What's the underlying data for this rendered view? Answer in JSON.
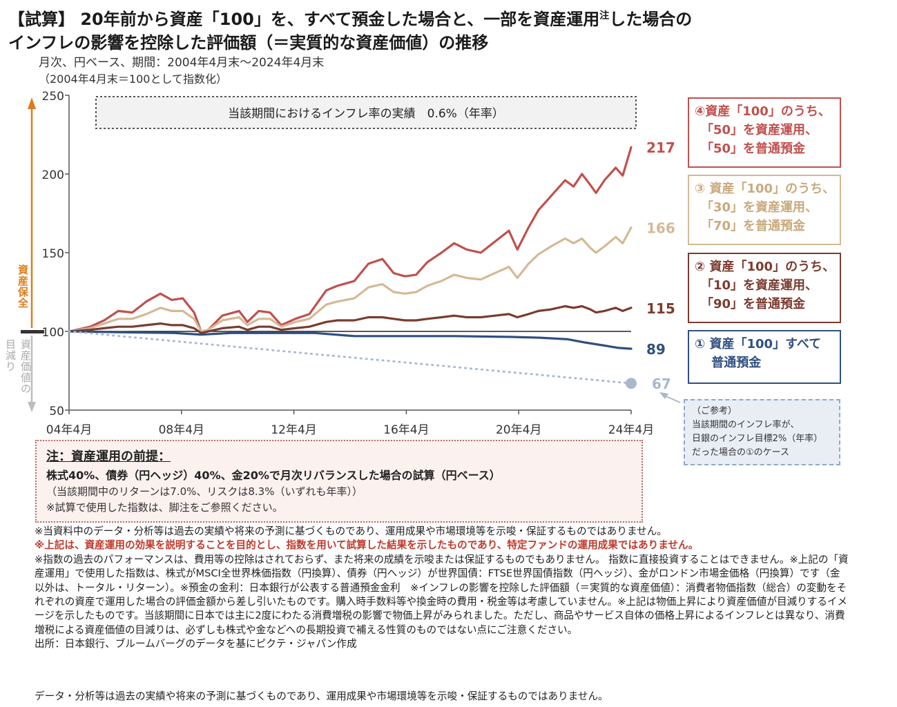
{
  "header": {
    "title_line1": "【試算】 20年前から資産「100」を、すべて預金した場合と、一部を資産運用",
    "title_sup": "注",
    "title_line1_end": "した場合の",
    "title_line2": "インフレの影響を控除した評価額（＝実質的な資産価値）の推移",
    "subtitle1": "月次、円ベース、期間：2004年4月末～2024年4月末",
    "subtitle2": "（2004年4月末＝100として指数化）"
  },
  "chart_data": {
    "type": "line",
    "x_ticks": [
      "04年4月",
      "08年4月",
      "12年4月",
      "16年4月",
      "20年4月",
      "24年4月"
    ],
    "y_ticks": [
      250,
      200,
      150,
      100,
      50
    ],
    "ylim": [
      50,
      250
    ],
    "xlim": [
      2004.25,
      2024.25
    ],
    "baseline": 100,
    "inflation_note": "当該期間におけるインフレ率の実績　0.6%（年率）",
    "axis_up_label": "資産保全",
    "axis_down_label1": "資産価値の",
    "axis_down_label2": "目減り",
    "series": [
      {
        "id": "s4",
        "color": "#c0504d",
        "end_label": "217",
        "points": [
          [
            2004.25,
            100
          ],
          [
            2005.0,
            103
          ],
          [
            2005.5,
            107
          ],
          [
            2006.0,
            113
          ],
          [
            2006.5,
            112
          ],
          [
            2007.0,
            119
          ],
          [
            2007.5,
            124
          ],
          [
            2007.9,
            120
          ],
          [
            2008.3,
            121
          ],
          [
            2008.7,
            112
          ],
          [
            2008.95,
            100
          ],
          [
            2009.2,
            101
          ],
          [
            2009.7,
            110
          ],
          [
            2010.3,
            113
          ],
          [
            2010.6,
            106
          ],
          [
            2011.0,
            113
          ],
          [
            2011.4,
            112
          ],
          [
            2011.8,
            104
          ],
          [
            2012.3,
            108
          ],
          [
            2012.8,
            111
          ],
          [
            2013.4,
            126
          ],
          [
            2013.8,
            129
          ],
          [
            2014.4,
            132
          ],
          [
            2014.9,
            143
          ],
          [
            2015.4,
            146
          ],
          [
            2015.8,
            137
          ],
          [
            2016.2,
            135
          ],
          [
            2016.6,
            136
          ],
          [
            2017.0,
            144
          ],
          [
            2017.5,
            150
          ],
          [
            2017.95,
            156
          ],
          [
            2018.4,
            152
          ],
          [
            2018.9,
            150
          ],
          [
            2019.4,
            157
          ],
          [
            2019.9,
            164
          ],
          [
            2020.2,
            152
          ],
          [
            2020.6,
            166
          ],
          [
            2020.95,
            177
          ],
          [
            2021.4,
            186
          ],
          [
            2021.9,
            196
          ],
          [
            2022.2,
            192
          ],
          [
            2022.5,
            200
          ],
          [
            2022.8,
            193
          ],
          [
            2023.0,
            188
          ],
          [
            2023.3,
            196
          ],
          [
            2023.7,
            204
          ],
          [
            2023.95,
            199
          ],
          [
            2024.25,
            217
          ]
        ]
      },
      {
        "id": "s3",
        "color": "#d4b994",
        "end_label": "166",
        "points": [
          [
            2004.25,
            100
          ],
          [
            2005.0,
            102
          ],
          [
            2005.5,
            105
          ],
          [
            2006.0,
            108
          ],
          [
            2006.5,
            108
          ],
          [
            2007.0,
            111
          ],
          [
            2007.5,
            115
          ],
          [
            2007.9,
            113
          ],
          [
            2008.3,
            113
          ],
          [
            2008.7,
            108
          ],
          [
            2008.95,
            100
          ],
          [
            2009.2,
            101
          ],
          [
            2009.7,
            107
          ],
          [
            2010.3,
            109
          ],
          [
            2010.6,
            104
          ],
          [
            2011.0,
            108
          ],
          [
            2011.4,
            108
          ],
          [
            2011.8,
            103
          ],
          [
            2012.3,
            106
          ],
          [
            2012.8,
            108
          ],
          [
            2013.4,
            117
          ],
          [
            2013.8,
            119
          ],
          [
            2014.4,
            121
          ],
          [
            2014.9,
            128
          ],
          [
            2015.4,
            130
          ],
          [
            2015.8,
            125
          ],
          [
            2016.2,
            124
          ],
          [
            2016.6,
            125
          ],
          [
            2017.0,
            129
          ],
          [
            2017.5,
            132
          ],
          [
            2017.95,
            136
          ],
          [
            2018.4,
            134
          ],
          [
            2018.9,
            133
          ],
          [
            2019.4,
            137
          ],
          [
            2019.9,
            141
          ],
          [
            2020.2,
            134
          ],
          [
            2020.6,
            143
          ],
          [
            2020.95,
            149
          ],
          [
            2021.4,
            154
          ],
          [
            2021.9,
            159
          ],
          [
            2022.2,
            156
          ],
          [
            2022.5,
            159
          ],
          [
            2022.8,
            153
          ],
          [
            2023.0,
            150
          ],
          [
            2023.3,
            154
          ],
          [
            2023.7,
            160
          ],
          [
            2023.95,
            156
          ],
          [
            2024.25,
            166
          ]
        ]
      },
      {
        "id": "s2",
        "color": "#7b3b2f",
        "end_label": "115",
        "points": [
          [
            2004.25,
            100
          ],
          [
            2005.0,
            101
          ],
          [
            2005.5,
            102
          ],
          [
            2006.0,
            103
          ],
          [
            2006.5,
            103
          ],
          [
            2007.0,
            104
          ],
          [
            2007.5,
            105
          ],
          [
            2007.9,
            104
          ],
          [
            2008.3,
            104
          ],
          [
            2008.7,
            102
          ],
          [
            2008.95,
            99
          ],
          [
            2009.2,
            100
          ],
          [
            2009.7,
            102
          ],
          [
            2010.3,
            103
          ],
          [
            2010.6,
            101
          ],
          [
            2011.0,
            103
          ],
          [
            2011.4,
            103
          ],
          [
            2011.8,
            101
          ],
          [
            2012.3,
            102
          ],
          [
            2012.8,
            103
          ],
          [
            2013.4,
            106
          ],
          [
            2013.8,
            107
          ],
          [
            2014.4,
            107
          ],
          [
            2014.9,
            109
          ],
          [
            2015.4,
            109
          ],
          [
            2015.8,
            108
          ],
          [
            2016.2,
            107
          ],
          [
            2016.6,
            107
          ],
          [
            2017.0,
            108
          ],
          [
            2017.5,
            109
          ],
          [
            2017.95,
            110
          ],
          [
            2018.4,
            109
          ],
          [
            2018.9,
            109
          ],
          [
            2019.4,
            110
          ],
          [
            2019.9,
            111
          ],
          [
            2020.2,
            109
          ],
          [
            2020.6,
            111
          ],
          [
            2020.95,
            113
          ],
          [
            2021.4,
            114
          ],
          [
            2021.9,
            116
          ],
          [
            2022.2,
            115
          ],
          [
            2022.5,
            116
          ],
          [
            2022.8,
            114
          ],
          [
            2023.0,
            112
          ],
          [
            2023.3,
            113
          ],
          [
            2023.7,
            115
          ],
          [
            2023.95,
            113
          ],
          [
            2024.25,
            115
          ]
        ]
      },
      {
        "id": "s1",
        "color": "#2f4f80",
        "end_label": "89",
        "points": [
          [
            2004.25,
            100
          ],
          [
            2006.0,
            99.5
          ],
          [
            2008.0,
            99
          ],
          [
            2008.95,
            98
          ],
          [
            2010.0,
            99
          ],
          [
            2012.0,
            99
          ],
          [
            2013.0,
            99
          ],
          [
            2014.4,
            97
          ],
          [
            2016.0,
            97
          ],
          [
            2018.0,
            97
          ],
          [
            2020.0,
            96.5
          ],
          [
            2021.0,
            96
          ],
          [
            2022.0,
            95
          ],
          [
            2022.6,
            93
          ],
          [
            2023.3,
            91
          ],
          [
            2023.8,
            89.5
          ],
          [
            2024.25,
            89
          ]
        ]
      },
      {
        "id": "ref",
        "color": "#a9b8cc",
        "dotted": true,
        "end_label": "67",
        "points": [
          [
            2004.25,
            100
          ],
          [
            2024.25,
            67
          ]
        ]
      }
    ]
  },
  "legend": {
    "s4": [
      "④資産「100」のうち、",
      "　「50」を資産運用、",
      "　「50」を普通預金"
    ],
    "s3": [
      "③ 資産「100」のうち、",
      "　「30」を資産運用、",
      "　「70」を普通預金"
    ],
    "s2": [
      "② 資産「100」のうち、",
      "　「10」を資産運用、",
      "　「90」を普通預金"
    ],
    "s1": [
      "① 資産「100」すべて",
      "　 普通預金"
    ]
  },
  "reference": {
    "lines": [
      "（ご参考）",
      "当該期間のインフレ率が、",
      "日銀のインフレ目標2%（年率）",
      "だった場合の①のケース"
    ]
  },
  "note": {
    "heading": "注：資産運用の前提：",
    "line1": "株式40%、債券（円ヘッジ）40%、金20%で月次リバランスした場合の試算（円ベース）",
    "line2": "（当該期間中のリターンは7.0%、リスクは8.3%（いずれも年率））",
    "line3": "※試算で使用した指数は、脚注をご参照ください。"
  },
  "disclaimer": {
    "p1": "※当資料中のデータ・分析等は過去の実績や将来の予測に基づくものであり、運用成果や市場環境等を示唆・保証するものではありません。",
    "p2_red": "※上記は、資産運用の効果を説明することを目的とし、指数を用いて試算した結果を示したものであり、特定ファンドの運用成果ではありません。",
    "p3": "※指数の過去のパフォーマンスは、費用等の控除はされておらず、また将来の成績を示唆または保証するものでもありません。 指数に直接投資することはできません。※上記の「資産運用」で使用した指数は、株式がMSCI全世界株価指数（円換算）、債券（円ヘッジ）が世界国債：FTSE世界国債指数（円ヘッジ）、金がロンドン市場金価格（円換算）です（金以外は、トータル・リターン）。※預金の金利：日本銀行が公表する普通預金金利　※インフレの影響を控除した評価額（＝実質的な資産価値）：消費者物価指数（総合）の変動をそれぞれの資産で運用した場合の評価金額から差し引いたものです。購入時手数料等や換金時の費用・税金等は考慮していません。※上記は物価上昇により資産価値が目減りするイメージを示したものです。当該期間に日本では主に2度にわたる消費増税の影響で物価上昇がみられました。ただし、商品やサービス自体の価格上昇によるインフレとは異なり、消費増税による資産価値の目減りは、必ずしも株式や金などへの長期投資で補える性質のものではない点にご注意ください。",
    "source": "出所：日本銀行、ブルームバーグのデータを基にピクテ・ジャパン作成"
  },
  "footer": {
    "text": "データ・分析等は過去の実績や将来の予測に基づくものであり、運用成果や市場環境等を示唆・保証するものではありません。"
  }
}
